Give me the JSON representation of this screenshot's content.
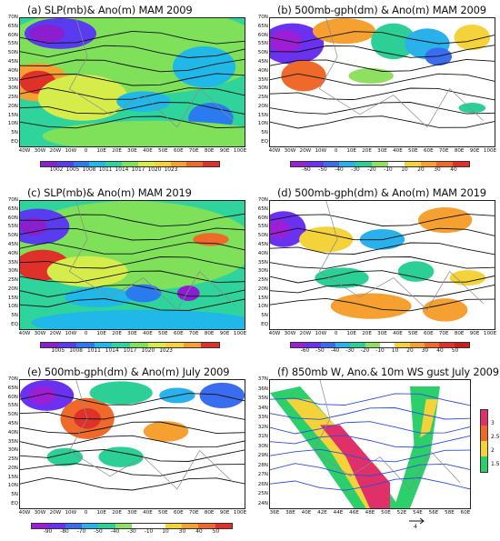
{
  "panels": [
    {
      "id": "a",
      "title": "(a) SLP(mb)& Ano(m) MAM 2009",
      "yticks": [
        "70N",
        "65N",
        "60N",
        "55N",
        "50N",
        "45N",
        "40N",
        "35N",
        "30N",
        "25N",
        "20N",
        "15N",
        "10N",
        "5N",
        "EQ"
      ],
      "xticks": [
        "40W",
        "30W",
        "20W",
        "10W",
        "0",
        "10E",
        "20E",
        "30E",
        "40E",
        "50E",
        "60E",
        "70E",
        "80E",
        "90E",
        "100E"
      ],
      "cbar_labels": [
        "1002",
        "1005",
        "1008",
        "1011",
        "1014",
        "1017",
        "1020",
        "1023"
      ],
      "cbar_colors": [
        "#8b1fd0",
        "#5a3cf0",
        "#2a7af0",
        "#1fb8e8",
        "#2fd39c",
        "#7fe05a",
        "#d6ec4a",
        "#f3d23a",
        "#f5a030",
        "#ef6a2a",
        "#e0302a"
      ]
    },
    {
      "id": "b",
      "title": "(b) 500mb-gph(dm) & Ano(m) MAM 2009",
      "yticks": [
        "70N",
        "65N",
        "60N",
        "55N",
        "50N",
        "45N",
        "40N",
        "35N",
        "30N",
        "25N",
        "20N",
        "15N",
        "10N",
        "5N",
        "EQ"
      ],
      "xticks": [
        "40W",
        "30W",
        "20W",
        "10W",
        "0",
        "10E",
        "20E",
        "30E",
        "40E",
        "50E",
        "60E",
        "70E",
        "80E",
        "90E",
        "100E"
      ],
      "cbar_labels": [
        "-60",
        "-50",
        "-40",
        "-30",
        "-20",
        "-10",
        "10",
        "20",
        "30",
        "40"
      ],
      "cbar_colors": [
        "#9c1fd6",
        "#6a32f0",
        "#3a6cf0",
        "#2ab0ea",
        "#2ccf96",
        "#8fe060",
        "#ffffff",
        "#f3d23a",
        "#f5a030",
        "#ef6a2a",
        "#e0302a"
      ]
    },
    {
      "id": "c",
      "title": "(c) SLP(mb)& Ano(m) MAM 2019",
      "yticks": [
        "70N",
        "65N",
        "60N",
        "55N",
        "50N",
        "45N",
        "40N",
        "35N",
        "30N",
        "25N",
        "20N",
        "15N",
        "10N",
        "5N",
        "EQ"
      ],
      "xticks": [
        "40W",
        "30W",
        "20W",
        "10W",
        "0",
        "10E",
        "20E",
        "30E",
        "40E",
        "50E",
        "60E",
        "70E",
        "80E",
        "90E",
        "100E"
      ],
      "cbar_labels": [
        "1005",
        "1008",
        "1011",
        "1014",
        "1017",
        "1020",
        "1023"
      ],
      "cbar_colors": [
        "#8b1fd0",
        "#5a3cf0",
        "#2a7af0",
        "#1fb8e8",
        "#2fd39c",
        "#7fe05a",
        "#d6ec4a",
        "#f3d23a",
        "#f5a030",
        "#e0302a"
      ]
    },
    {
      "id": "d",
      "title": "(d) 500mb-gph(dm) & Ano(m) MAM 2019",
      "yticks": [
        "70N",
        "65N",
        "60N",
        "55N",
        "50N",
        "45N",
        "40N",
        "35N",
        "30N",
        "25N",
        "20N",
        "15N",
        "10N",
        "5N",
        "EQ"
      ],
      "xticks": [
        "40W",
        "30W",
        "20W",
        "10W",
        "0",
        "10E",
        "20E",
        "30E",
        "40E",
        "50E",
        "60E",
        "70E",
        "80E",
        "90E",
        "100E"
      ],
      "cbar_labels": [
        "-60",
        "-50",
        "-40",
        "-30",
        "-20",
        "-10",
        "10",
        "20",
        "30",
        "40",
        "50"
      ],
      "cbar_colors": [
        "#9c1fd6",
        "#6a32f0",
        "#3a6cf0",
        "#2ab0ea",
        "#2ccf96",
        "#8fe060",
        "#ffffff",
        "#f3d23a",
        "#f5a030",
        "#ef6a2a",
        "#e0302a",
        "#c81e1e"
      ]
    },
    {
      "id": "e",
      "title": "(e) 500mb-gph(dm) & Ano(m) July 2009",
      "yticks": [
        "70N",
        "65N",
        "60N",
        "55N",
        "50N",
        "45N",
        "40N",
        "35N",
        "30N",
        "25N",
        "20N",
        "15N",
        "10N",
        "5N",
        "EQ"
      ],
      "xticks": [
        "40W",
        "30W",
        "20W",
        "10W",
        "0",
        "10E",
        "20E",
        "30E",
        "40E",
        "50E",
        "60E",
        "70E",
        "80E",
        "90E",
        "100E"
      ],
      "cbar_labels": [
        "-90",
        "-80",
        "-70",
        "-50",
        "-40",
        "-30",
        "-10",
        "10",
        "30",
        "40",
        "50"
      ],
      "cbar_colors": [
        "#9c1fd6",
        "#6a32f0",
        "#3a6cf0",
        "#2ab0ea",
        "#2ccf96",
        "#8fe060",
        "#ffffff",
        "#ffffff",
        "#f3d23a",
        "#f5a030",
        "#ef6a2a",
        "#e0302a"
      ]
    },
    {
      "id": "f",
      "title": "(f) 850mb W, Ano.& 10m WS gust July 2009",
      "yticks": [
        "37N",
        "36N",
        "35N",
        "34N",
        "33N",
        "32N",
        "31N",
        "30N",
        "29N",
        "28N",
        "27N",
        "26N",
        "25N",
        "24N"
      ],
      "xticks": [
        "36E",
        "38E",
        "40E",
        "42E",
        "44E",
        "46E",
        "48E",
        "50E",
        "52E",
        "54E",
        "56E",
        "58E",
        "60E"
      ],
      "vbar_labels": [
        "3",
        "2.5",
        "2",
        "1.5"
      ],
      "vbar_colors": [
        "#e0306a",
        "#ef6a2a",
        "#f3d23a",
        "#2ccf6a"
      ],
      "vector_ref": "4"
    }
  ]
}
